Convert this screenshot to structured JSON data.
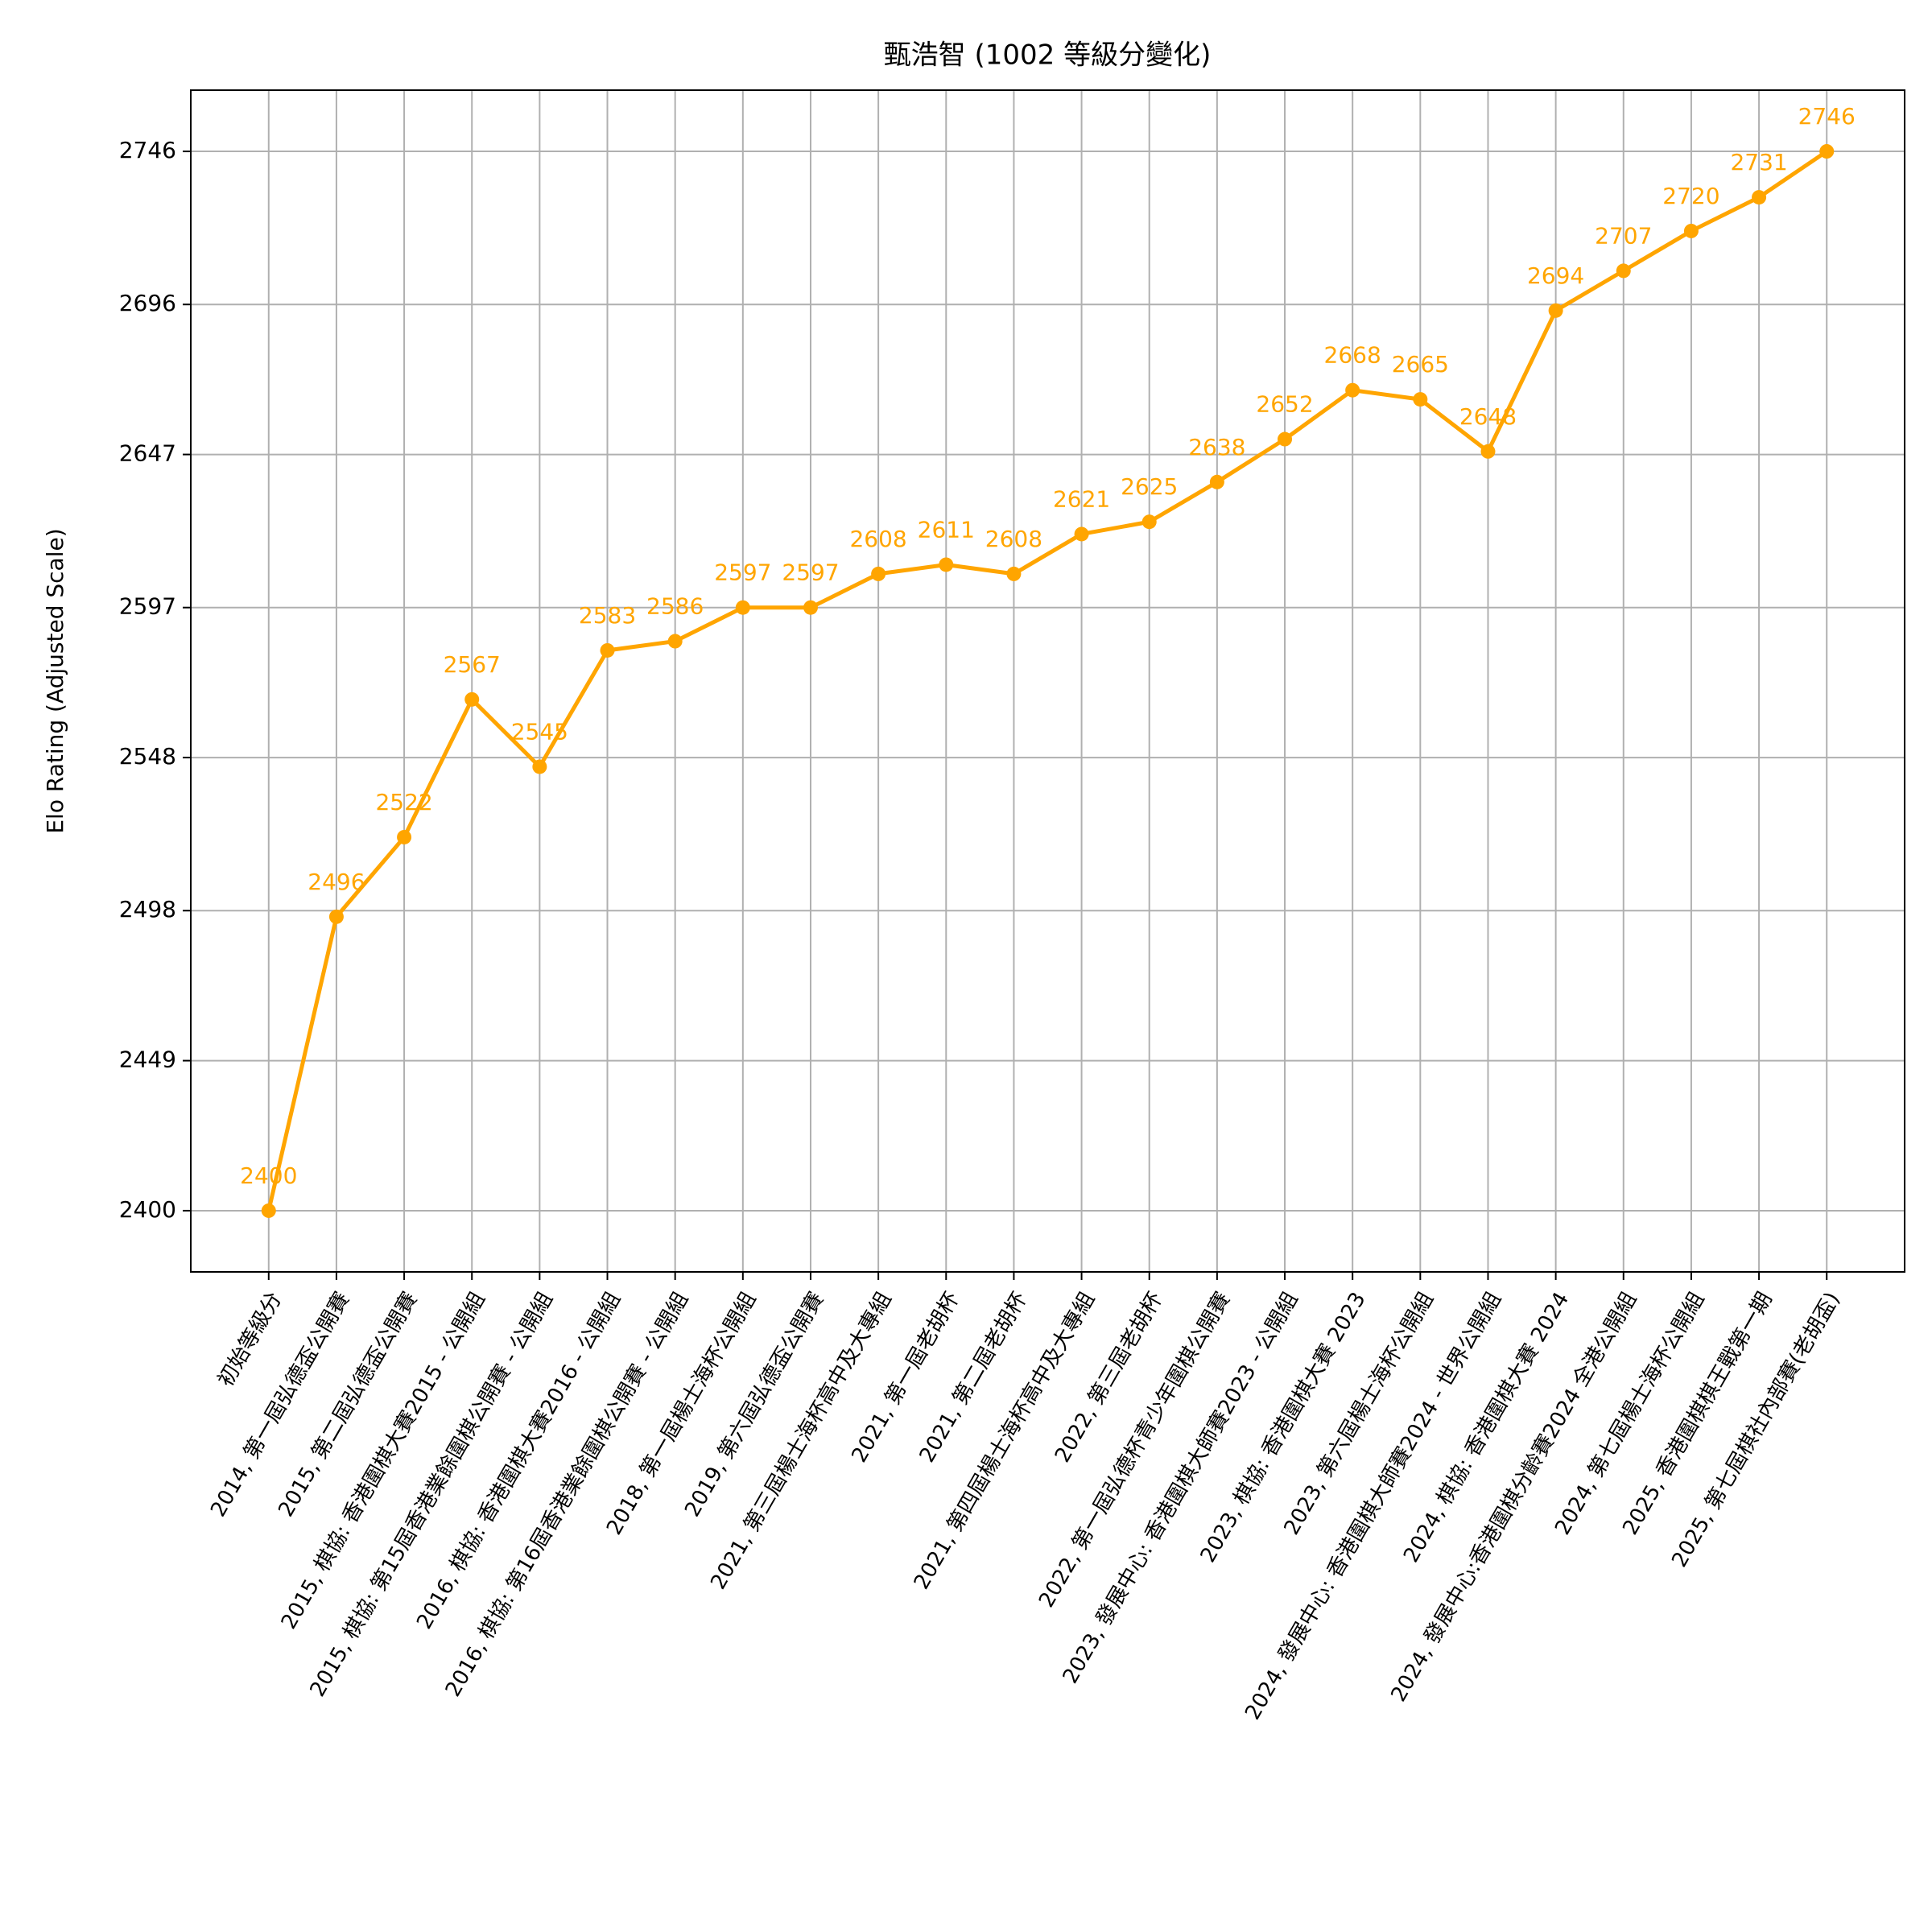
{
  "chart_data": {
    "type": "line",
    "title": "甄浩智 (1002 等級分變化)",
    "ylabel": "Elo Rating (Adjusted Scale)",
    "categories": [
      "初始等級分",
      "2014, 第一屆弘德盃公開賽",
      "2015, 第二屆弘德盃公開賽",
      "2015, 棋協: 香港圍棋大賽2015 - 公開組",
      "2015, 棋協: 第15屆香港業餘圍棋公開賽 - 公開組",
      "2016, 棋協: 香港圍棋大賽2016 - 公開組",
      "2016, 棋協: 第16屆香港業餘圍棋公開賽 - 公開組",
      "2018, 第一屆楊士海杯公開組",
      "2019, 第六屆弘德盃公開賽",
      "2021, 第三屆楊士海杯高中及大專組",
      "2021, 第一屆老胡杯",
      "2021, 第二屆老胡杯",
      "2021, 第四屆楊士海杯高中及大專組",
      "2022, 第三屆老胡杯",
      "2022, 第一屆弘德杯青少年圍棋公開賽",
      "2023, 發展中心: 香港圍棋大師賽2023 - 公開組",
      "2023, 棋協: 香港圍棋大賽 2023",
      "2023, 第六屆楊士海杯公開組",
      "2024, 發展中心: 香港圍棋大師賽2024 - 世界公開組",
      "2024, 棋協: 香港圍棋大賽 2024",
      "2024, 發展中心:香港圍棋分齡賽2024 全港公開組",
      "2024, 第七屆楊士海杯公開組",
      "2025, 香港圍棋棋王戰第一期",
      "2025, 第七屆棋社內部賽(老胡盃)"
    ],
    "values": [
      2400,
      2496,
      2522,
      2567,
      2545,
      2583,
      2586,
      2597,
      2597,
      2608,
      2611,
      2608,
      2621,
      2625,
      2638,
      2652,
      2668,
      2665,
      2648,
      2694,
      2707,
      2720,
      2731,
      2746
    ],
    "color": "#ffa500",
    "ylim": [
      2380,
      2766
    ],
    "yticks": [
      2400,
      2449,
      2498,
      2548,
      2597,
      2647,
      2696,
      2746
    ],
    "grid": true
  }
}
